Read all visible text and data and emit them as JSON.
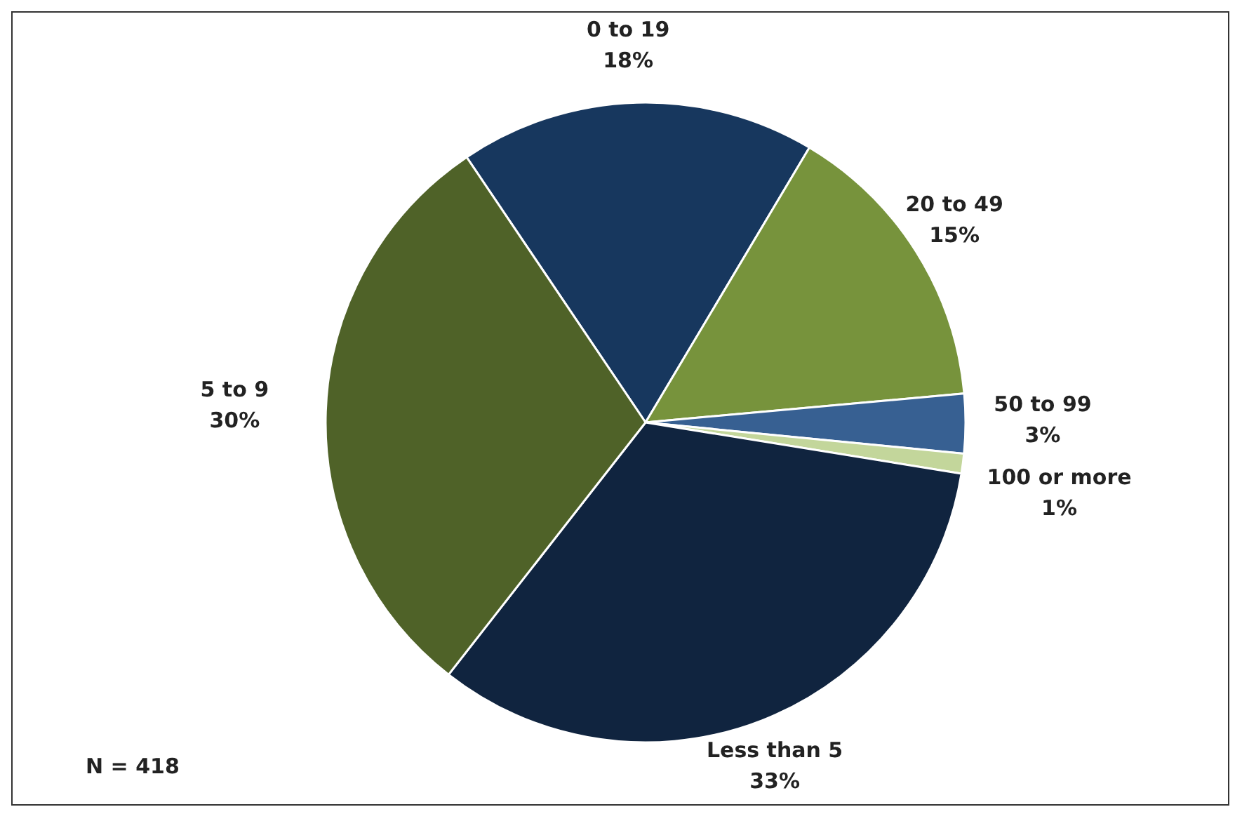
{
  "chart_data": {
    "type": "pie",
    "categories": [
      "0 to 19",
      "20 to 49",
      "50 to 99",
      "100 or more",
      "Less than 5",
      "5 to 9"
    ],
    "values": [
      18,
      15,
      3,
      1,
      33,
      30
    ],
    "value_labels": [
      "18%",
      "15%",
      "3%",
      "1%",
      "33%",
      "30%"
    ],
    "colors": [
      "#17375e",
      "#77933c",
      "#376092",
      "#c3d69b",
      "#10243f",
      "#4f6228"
    ],
    "annotations": [
      "N = 418"
    ]
  }
}
